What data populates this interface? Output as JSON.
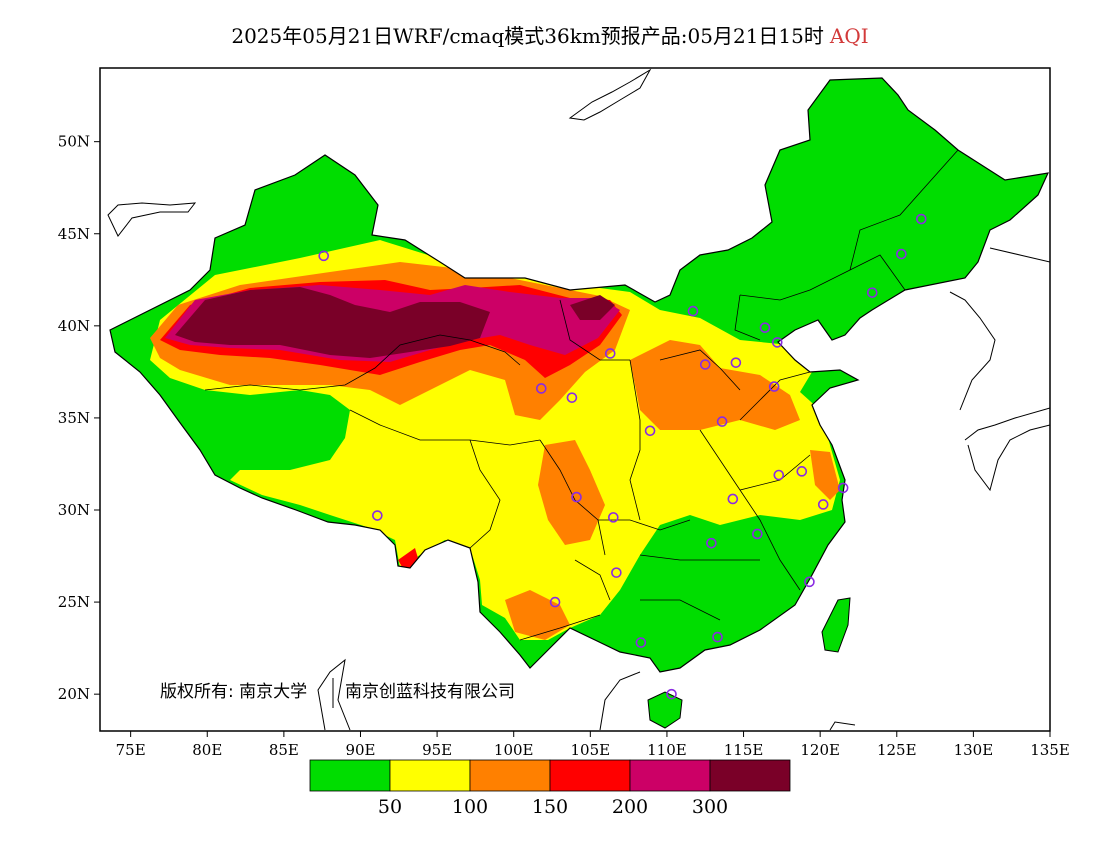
{
  "header": {
    "title": "2025年05月21日WRF/cmaq模式36km预报产品:05月21日15时",
    "variable": "AQI"
  },
  "map": {
    "lon_range": [
      73,
      135
    ],
    "lat_range": [
      18,
      54
    ],
    "lon_ticks": [
      "75E",
      "80E",
      "85E",
      "90E",
      "95E",
      "100E",
      "105E",
      "110E",
      "115E",
      "120E",
      "125E",
      "130E",
      "135E"
    ],
    "lat_ticks": [
      "20N",
      "25N",
      "30N",
      "35N",
      "40N",
      "45N",
      "50N"
    ],
    "copyright": "版权所有: 南京大学",
    "copyright_company": "南京创蓝科技有限公司",
    "stations": [
      [
        87.6,
        43.8
      ],
      [
        91.1,
        29.7
      ],
      [
        101.8,
        36.6
      ],
      [
        103.8,
        36.1
      ],
      [
        106.3,
        38.5
      ],
      [
        111.7,
        40.8
      ],
      [
        116.4,
        39.9
      ],
      [
        117.2,
        39.1
      ],
      [
        112.5,
        37.9
      ],
      [
        114.5,
        38.0
      ],
      [
        117.0,
        36.7
      ],
      [
        113.6,
        34.8
      ],
      [
        108.9,
        34.3
      ],
      [
        104.1,
        30.7
      ],
      [
        106.5,
        29.6
      ],
      [
        106.7,
        26.6
      ],
      [
        102.7,
        25.0
      ],
      [
        108.3,
        22.8
      ],
      [
        110.3,
        20.0
      ],
      [
        113.3,
        23.1
      ],
      [
        112.9,
        28.2
      ],
      [
        114.3,
        30.6
      ],
      [
        115.9,
        28.7
      ],
      [
        117.3,
        31.9
      ],
      [
        118.8,
        32.1
      ],
      [
        120.2,
        30.3
      ],
      [
        121.5,
        31.2
      ],
      [
        119.3,
        26.1
      ],
      [
        123.4,
        41.8
      ],
      [
        125.3,
        43.9
      ],
      [
        126.6,
        45.8
      ]
    ]
  },
  "colorbar": {
    "colors": [
      "#00dd00",
      "#ffff00",
      "#ff8000",
      "#ff0000",
      "#cc0066",
      "#7a0028"
    ],
    "labels": [
      "50",
      "100",
      "150",
      "200",
      "300"
    ]
  },
  "style": {
    "station_color": "#8a2be2",
    "boundary_color": "#000000"
  }
}
